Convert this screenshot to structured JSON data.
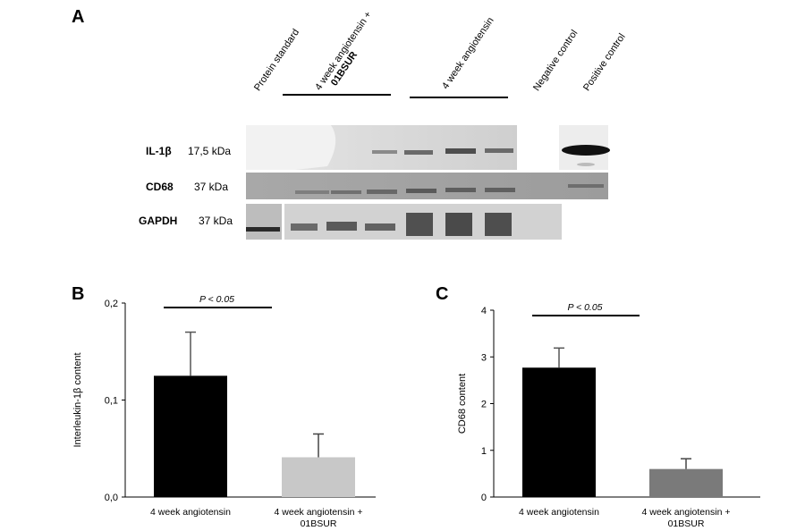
{
  "panel_a": {
    "letter": "A",
    "lanes": [
      {
        "label": "Protein standard"
      },
      {
        "label": "4 week angiotensin +",
        "label2": "01BSUR"
      },
      {
        "label": "4 week angiotensin"
      },
      {
        "label": "Negative control"
      },
      {
        "label": "Positive control"
      }
    ],
    "rows": [
      {
        "name": "IL-1β",
        "kda": "17,5 kDa"
      },
      {
        "name": "CD68",
        "kda": "37 kDa"
      },
      {
        "name": "GAPDH",
        "kda": "37 kDa"
      }
    ]
  },
  "chart_data": [
    {
      "panel": "B",
      "type": "bar",
      "categories": [
        "4 week angiotensin",
        "4 week angiotensin + 01BSUR"
      ],
      "values": [
        0.125,
        0.041
      ],
      "errors": [
        0.045,
        0.024
      ],
      "ylabel": "Interleukin-1β content",
      "ylim": [
        0,
        0.2
      ],
      "yticks": [
        "0,0",
        "0,1",
        "0,2"
      ],
      "significance": "P < 0.05",
      "colors": [
        "#000000",
        "#c8c8c8"
      ],
      "grid": false
    },
    {
      "panel": "C",
      "type": "bar",
      "categories": [
        "4 week angiotensin",
        "4 week angiotensin + 01BSUR"
      ],
      "values": [
        2.77,
        0.6
      ],
      "errors": [
        0.42,
        0.22
      ],
      "ylabel": "CD68 content",
      "ylim": [
        0,
        4
      ],
      "yticks": [
        "0",
        "1",
        "2",
        "3",
        "4"
      ],
      "significance": "P < 0.05",
      "colors": [
        "#000000",
        "#7a7a7a"
      ],
      "grid": false
    }
  ]
}
